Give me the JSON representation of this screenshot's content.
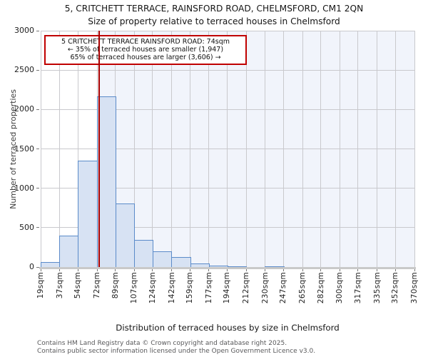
{
  "header": {
    "title_line1": "5, CRITCHETT TERRACE, RAINSFORD ROAD, CHELMSFORD, CM1 2QN",
    "title_line2": "Size of property relative to terraced houses in Chelmsford"
  },
  "chart_data": {
    "type": "bar",
    "title": "5, CRITCHETT TERRACE, RAINSFORD ROAD, CHELMSFORD, CM1 2QN",
    "subtitle": "Size of property relative to terraced houses in Chelmsford",
    "xlabel": "Distribution of terraced houses by size in Chelmsford",
    "ylabel": "Number of terraced properties",
    "bin_edges_sqm": [
      19,
      37,
      54,
      72,
      89,
      107,
      124,
      142,
      159,
      177,
      194,
      212,
      230,
      247,
      265,
      282,
      300,
      317,
      335,
      352,
      370
    ],
    "x_tick_labels": [
      "19sqm",
      "37sqm",
      "54sqm",
      "72sqm",
      "89sqm",
      "107sqm",
      "124sqm",
      "142sqm",
      "159sqm",
      "177sqm",
      "194sqm",
      "212sqm",
      "230sqm",
      "247sqm",
      "265sqm",
      "282sqm",
      "300sqm",
      "317sqm",
      "335sqm",
      "352sqm",
      "370sqm"
    ],
    "values": [
      60,
      400,
      1350,
      2170,
      810,
      345,
      195,
      130,
      45,
      20,
      10,
      0,
      10,
      0,
      0,
      0,
      0,
      0,
      0,
      0
    ],
    "ylim": [
      0,
      3000
    ],
    "y_ticks": [
      0,
      500,
      1000,
      1500,
      2000,
      2500,
      3000
    ],
    "grid": true,
    "legend": "none",
    "marker": {
      "size_sqm": 74,
      "label": "74sqm"
    },
    "shade_from_sqm": 74,
    "annotation": {
      "line1": "5 CRITCHETT TERRACE RAINSFORD ROAD: 74sqm",
      "line2": "← 35% of terraced houses are smaller (1,947)",
      "line3": "65% of terraced houses are larger (3,606) →"
    },
    "colors": {
      "bar_fill": "#d7e2f3",
      "bar_stroke": "#5b8bc9",
      "shade": "#f1f4fb",
      "grid": "#c9c9cd",
      "baseline": "#c9c9c9",
      "marker_line": "#a80000",
      "annotation_border": "#c00000"
    }
  },
  "footer": {
    "line1": "Contains HM Land Registry data © Crown copyright and database right 2025.",
    "line2": "Contains public sector information licensed under the Open Government Licence v3.0."
  }
}
